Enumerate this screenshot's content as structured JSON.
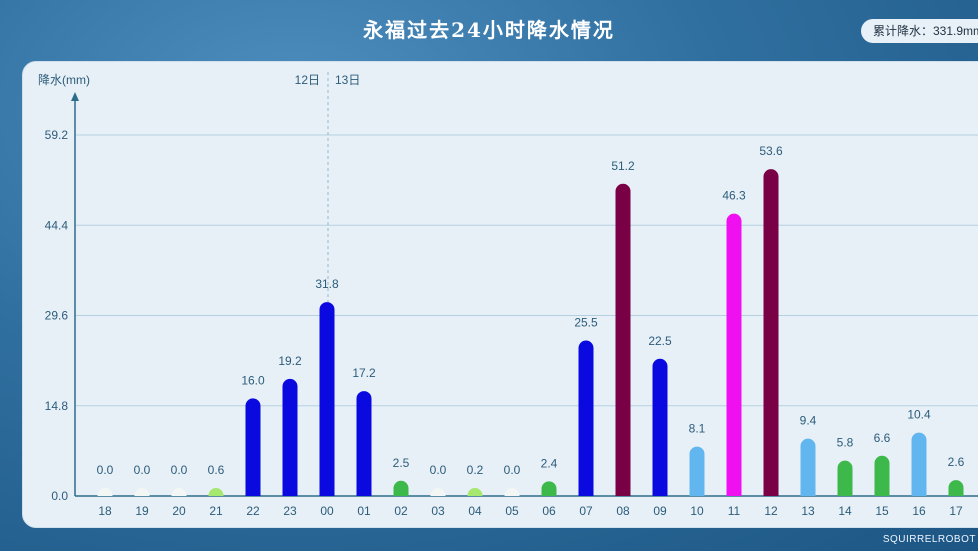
{
  "header": {
    "title": "永福过去24小时降水情况",
    "total_label": "累计降水：331.9mm"
  },
  "brand": "SQUIRRELROBOT",
  "colors": {
    "trace": "#f2f6f4",
    "light_green": "#a6e86f",
    "green": "#3db84a",
    "light_blue": "#61b6f0",
    "blue": "#0a0ae0",
    "magenta": "#f00ff0",
    "maroon": "#7a0046",
    "axis": "#2d6d8c",
    "grid": "#b5cfe0",
    "text": "#2c5c7a"
  },
  "chart_data": {
    "type": "bar",
    "ylabel": "降水(mm)",
    "ylim": [
      0,
      59.2
    ],
    "yticks": [
      "0.0",
      "14.8",
      "29.6",
      "44.4",
      "59.2"
    ],
    "ytick_values": [
      0,
      14.8,
      29.6,
      44.4,
      59.2
    ],
    "day_labels": [
      "12日",
      "13日"
    ],
    "categories": [
      "18",
      "19",
      "20",
      "21",
      "22",
      "23",
      "00",
      "01",
      "02",
      "03",
      "04",
      "05",
      "06",
      "07",
      "08",
      "09",
      "10",
      "11",
      "12",
      "13",
      "14",
      "15",
      "16",
      "17"
    ],
    "values": [
      0.0,
      0.0,
      0.0,
      0.6,
      16.0,
      19.2,
      31.8,
      17.2,
      2.5,
      0.0,
      0.2,
      0.0,
      2.4,
      25.5,
      51.2,
      22.5,
      8.1,
      46.3,
      53.6,
      9.4,
      5.8,
      6.6,
      10.4,
      2.6
    ],
    "labels": [
      "0.0",
      "0.0",
      "0.0",
      "0.6",
      "16.0",
      "19.2",
      "31.8",
      "17.2",
      "2.5",
      "0.0",
      "0.2",
      "0.0",
      "2.4",
      "25.5",
      "51.2",
      "22.5",
      "8.1",
      "46.3",
      "53.6",
      "9.4",
      "5.8",
      "6.6",
      "10.4",
      "2.6"
    ],
    "bar_colors": [
      "trace",
      "trace",
      "trace",
      "light_green",
      "blue",
      "blue",
      "blue",
      "blue",
      "green",
      "trace",
      "light_green",
      "trace",
      "green",
      "blue",
      "maroon",
      "blue",
      "light_blue",
      "magenta",
      "maroon",
      "light_blue",
      "green",
      "green",
      "light_blue",
      "green"
    ],
    "grid": true
  }
}
